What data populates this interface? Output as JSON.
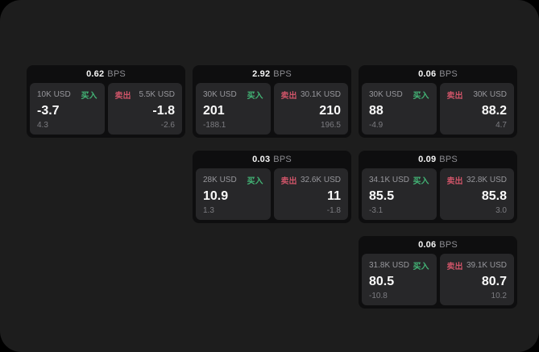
{
  "labels": {
    "bps_unit": "BPS",
    "buy": "买入",
    "sell": "卖出"
  },
  "colors": {
    "background": "#000000",
    "surface": "#1d1d1d",
    "card": "#0e0e0f",
    "tile": "#272729",
    "buy_green": "#43b576",
    "sell_red": "#ce5468",
    "muted_text": "#97979c",
    "value_text": "#fafafa"
  },
  "cards": [
    {
      "bps": "0.62",
      "buy": {
        "amount": "10K USD",
        "value": "-3.7",
        "change": "4.3"
      },
      "sell": {
        "amount": "5.5K USD",
        "value": "-1.8",
        "change": "-2.6"
      }
    },
    {
      "bps": "2.92",
      "buy": {
        "amount": "30K USD",
        "value": "201",
        "change": "-188.1"
      },
      "sell": {
        "amount": "30.1K USD",
        "value": "210",
        "change": "196.5"
      }
    },
    {
      "bps": "0.06",
      "buy": {
        "amount": "30K USD",
        "value": "88",
        "change": "-4.9"
      },
      "sell": {
        "amount": "30K USD",
        "value": "88.2",
        "change": "4.7"
      }
    },
    {
      "bps": "0.03",
      "buy": {
        "amount": "28K USD",
        "value": "10.9",
        "change": "1.3"
      },
      "sell": {
        "amount": "32.6K USD",
        "value": "11",
        "change": "-1.8"
      }
    },
    {
      "bps": "0.09",
      "buy": {
        "amount": "34.1K USD",
        "value": "85.5",
        "change": "-3.1"
      },
      "sell": {
        "amount": "32.8K USD",
        "value": "85.8",
        "change": "3.0"
      }
    },
    {
      "bps": "0.06",
      "buy": {
        "amount": "31.8K USD",
        "value": "80.5",
        "change": "-10.8"
      },
      "sell": {
        "amount": "39.1K USD",
        "value": "80.7",
        "change": "10.2"
      }
    }
  ]
}
